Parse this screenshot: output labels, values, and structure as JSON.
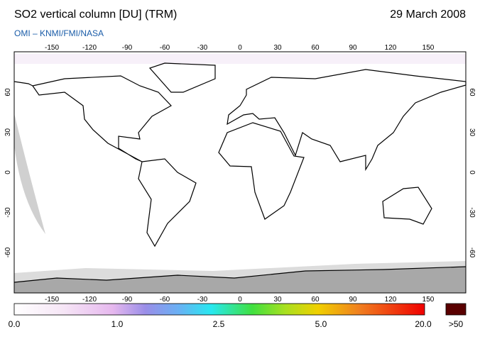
{
  "header": {
    "title": "SO2 vertical column [DU] (TRM)",
    "date": "29 March 2008",
    "credit": "OMI  –  KNMI/FMI/NASA"
  },
  "map": {
    "lon_ticks": [
      -150,
      -120,
      -90,
      -60,
      -30,
      0,
      30,
      60,
      90,
      120,
      150
    ],
    "lat_ticks": [
      60,
      30,
      0,
      -30,
      -60
    ]
  },
  "colorbar": {
    "labels": [
      "0.0",
      "1.0",
      "2.5",
      "5.0",
      "20.0"
    ],
    "overflow_label": ">50"
  }
}
